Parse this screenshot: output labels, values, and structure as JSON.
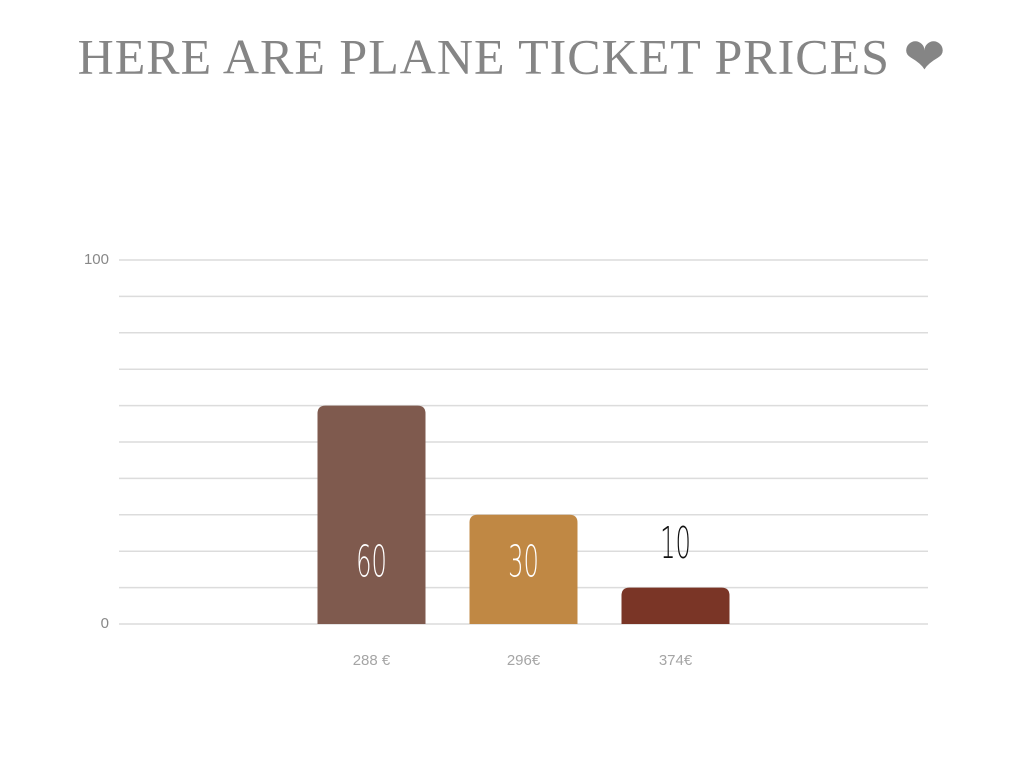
{
  "chart_data": {
    "type": "bar",
    "title": "HERE ARE PLANE TICKET PRICES ❤",
    "categories": [
      "288 €",
      "296€",
      "374€"
    ],
    "values": [
      60,
      30,
      10
    ],
    "colors": [
      "#7f5a4e",
      "#c08844",
      "#7a3526"
    ],
    "ylim": [
      0,
      100
    ],
    "yticks": [
      0,
      100
    ],
    "grid_lines": [
      0,
      10,
      20,
      30,
      40,
      50,
      60,
      70,
      80,
      90,
      100
    ],
    "grid": true
  }
}
